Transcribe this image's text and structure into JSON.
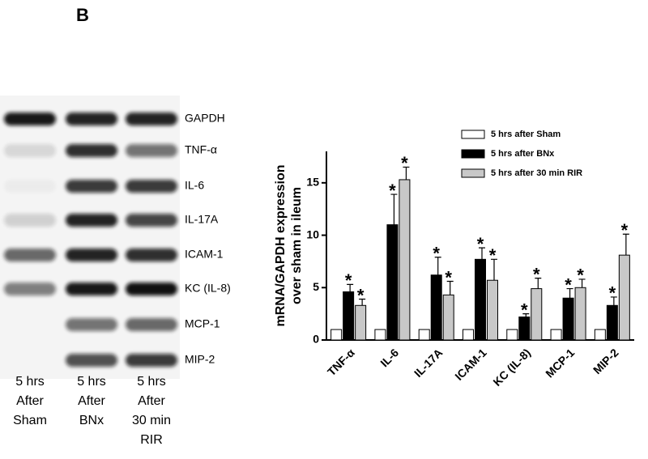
{
  "panel_label": "B",
  "gel": {
    "rows": [
      "GAPDH",
      "TNF-α",
      "IL-6",
      "IL-17A",
      "ICAM-1",
      "KC (IL-8)",
      "MCP-1",
      "MIP-2"
    ],
    "lanes": [
      [
        "5 hrs",
        "After",
        "Sham"
      ],
      [
        "5 hrs",
        "After",
        "BNx"
      ],
      [
        "5 hrs",
        "After",
        "30 min",
        "RIR"
      ]
    ]
  },
  "chart_data": {
    "type": "bar",
    "ylabel": [
      "mRNA/GAPDH expression",
      "over sham in ileum"
    ],
    "categories": [
      "TNF-α",
      "IL-6",
      "IL-17A",
      "ICAM-1",
      "KC (IL-8)",
      "MCP-1",
      "MIP-2"
    ],
    "series": [
      {
        "name": "5 hrs after Sham",
        "color": "#ffffff",
        "values": [
          1,
          1,
          1,
          1,
          1,
          1,
          1
        ]
      },
      {
        "name": "5 hrs after BNx",
        "color": "#000000",
        "values": [
          4.6,
          11,
          6.2,
          7.7,
          2.2,
          4.0,
          3.3
        ],
        "errors": [
          0.7,
          2.9,
          1.7,
          1.1,
          0.3,
          0.9,
          0.8
        ],
        "annotations": [
          "*",
          "*",
          "*",
          "*",
          "*",
          "*",
          "*"
        ]
      },
      {
        "name": "5 hrs after 30 min RIR",
        "color": "#c8c8c8",
        "values": [
          3.3,
          15.3,
          4.3,
          5.7,
          4.9,
          5.0,
          8.1
        ],
        "errors": [
          0.6,
          1.2,
          1.3,
          2.0,
          1.0,
          0.8,
          2.0
        ],
        "annotations": [
          "*",
          "*",
          "*",
          "*",
          "*",
          "*",
          "*"
        ]
      }
    ],
    "ylim": [
      0,
      18
    ],
    "yticks": [
      0,
      5,
      10,
      15
    ],
    "legend": "upper-right"
  }
}
